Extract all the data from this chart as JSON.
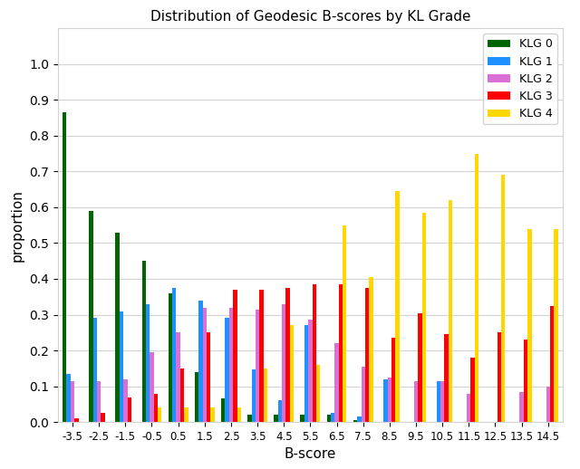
{
  "title": "Distribution of Geodesic B-scores by KL Grade",
  "xlabel": "B-score",
  "ylabel": "proportion",
  "xlabels": [
    "-3.5",
    "-2.5",
    "-1.5",
    "-0.5",
    "0.5",
    "1.5",
    "2.5",
    "3.5",
    "4.5",
    "5.5",
    "6.5",
    "7.5",
    "8.5",
    "9.5",
    "10.5",
    "11.5",
    "12.5",
    "13.5",
    "14.5"
  ],
  "klg0": [
    0.865,
    0.59,
    0.53,
    0.45,
    0.36,
    0.14,
    0.065,
    0.02,
    0.02,
    0.02,
    0.02,
    0.005,
    0.0,
    0.0,
    0.0,
    0.0,
    0.0,
    0.0,
    0.0
  ],
  "klg1": [
    0.135,
    0.29,
    0.31,
    0.33,
    0.375,
    0.34,
    0.29,
    0.148,
    0.06,
    0.27,
    0.025,
    0.015,
    0.12,
    0.0,
    0.115,
    0.0,
    0.0,
    0.0,
    0.0
  ],
  "klg2": [
    0.115,
    0.115,
    0.12,
    0.195,
    0.25,
    0.32,
    0.32,
    0.315,
    0.33,
    0.285,
    0.22,
    0.155,
    0.125,
    0.115,
    0.115,
    0.08,
    0.0,
    0.085,
    0.1
  ],
  "klg3": [
    0.01,
    0.025,
    0.07,
    0.08,
    0.15,
    0.25,
    0.37,
    0.37,
    0.375,
    0.385,
    0.385,
    0.375,
    0.235,
    0.305,
    0.245,
    0.18,
    0.25,
    0.23,
    0.325
  ],
  "klg4": [
    0.0,
    0.0,
    0.0,
    0.04,
    0.04,
    0.04,
    0.04,
    0.15,
    0.27,
    0.16,
    0.55,
    0.405,
    0.645,
    0.585,
    0.62,
    0.75,
    0.69,
    0.54,
    0.54
  ],
  "colors": [
    "#006400",
    "#1e90ff",
    "#da70d6",
    "#ff0000",
    "#ffd700"
  ],
  "klg_labels": [
    "KLG 0",
    "KLG 1",
    "KLG 2",
    "KLG 3",
    "KLG 4"
  ],
  "ylim": [
    0.0,
    1.1
  ],
  "yticks": [
    0.0,
    0.1,
    0.2,
    0.3,
    0.4,
    0.5,
    0.6,
    0.7,
    0.8,
    0.9,
    1.0
  ],
  "bar_width": 0.15,
  "figsize": [
    6.4,
    5.18
  ],
  "dpi": 100
}
